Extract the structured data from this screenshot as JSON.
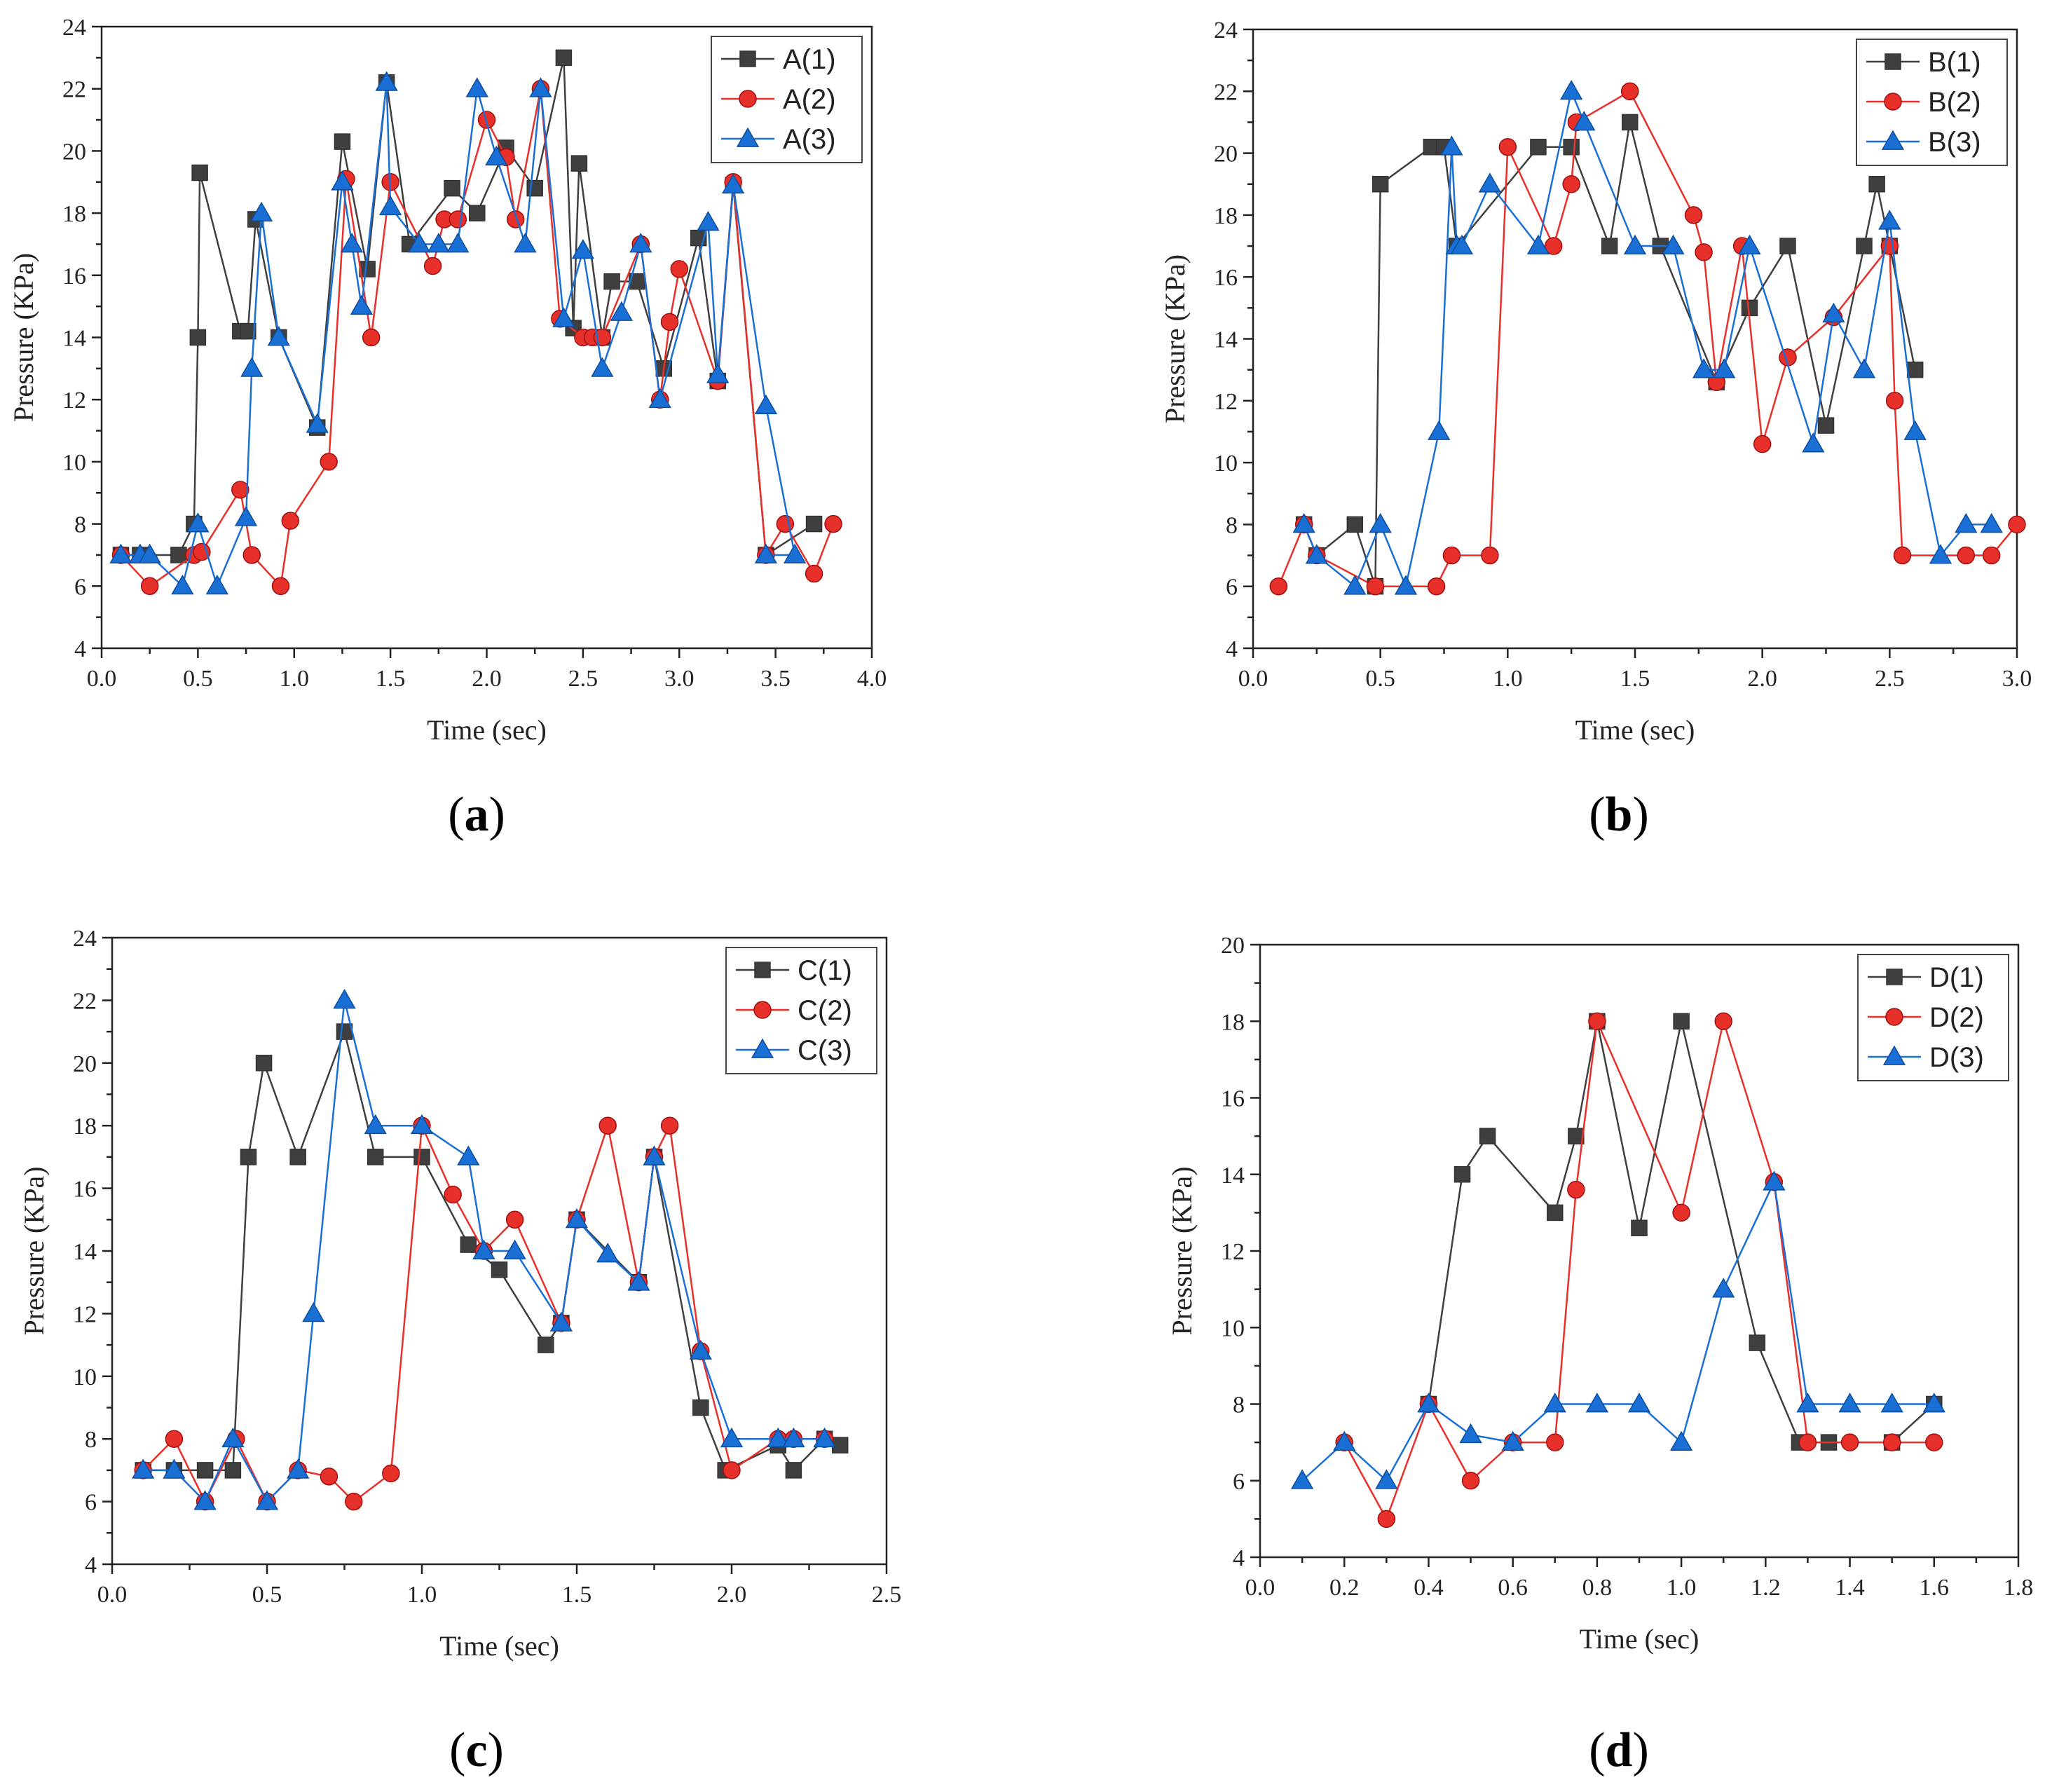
{
  "chart_data": [
    {
      "type": "line",
      "panel_label": "a",
      "xlabel": "Time (sec)",
      "ylabel": "Pressure (KPa)",
      "xlim": [
        0.0,
        4.0
      ],
      "ylim": [
        4,
        24
      ],
      "xticks": [
        "0.0",
        "0.5",
        "1.0",
        "1.5",
        "2.0",
        "2.5",
        "3.0",
        "3.5",
        "4.0"
      ],
      "yticks": [
        "4",
        "6",
        "8",
        "10",
        "12",
        "14",
        "16",
        "18",
        "20",
        "22",
        "24"
      ],
      "legend_position": "top-right",
      "series": [
        {
          "name": "A(1)",
          "color": "#3f3f3f",
          "marker": "square",
          "x": [
            0.1,
            0.2,
            0.4,
            0.48,
            0.5,
            0.51,
            0.72,
            0.76,
            0.8,
            0.92,
            1.12,
            1.25,
            1.38,
            1.48,
            1.6,
            1.82,
            1.95,
            2.1,
            2.25,
            2.4,
            2.45,
            2.48,
            2.6,
            2.65,
            2.78,
            2.92,
            3.1,
            3.2,
            3.28,
            3.45,
            3.7
          ],
          "y": [
            7,
            7,
            7,
            8,
            14,
            19.3,
            14.2,
            14.2,
            17.8,
            14,
            11.1,
            20.3,
            16.2,
            22.2,
            17,
            18.8,
            18,
            20.1,
            18.8,
            23,
            14.3,
            19.6,
            14,
            15.8,
            15.8,
            13,
            17.2,
            12.6,
            18.9,
            7,
            8
          ]
        },
        {
          "name": "A(2)",
          "color": "#e8302a",
          "marker": "circle",
          "x": [
            0.1,
            0.25,
            0.48,
            0.52,
            0.72,
            0.78,
            0.93,
            0.98,
            1.18,
            1.27,
            1.4,
            1.5,
            1.72,
            1.78,
            1.85,
            2.0,
            2.1,
            2.15,
            2.28,
            2.38,
            2.5,
            2.55,
            2.6,
            2.8,
            2.9,
            2.95,
            3.0,
            3.2,
            3.28,
            3.45,
            3.55,
            3.7,
            3.8
          ],
          "y": [
            7,
            6,
            7,
            7.1,
            9.1,
            7,
            6,
            8.1,
            10,
            19.1,
            14,
            19,
            16.3,
            17.8,
            17.8,
            21,
            19.8,
            17.8,
            22,
            14.6,
            14,
            14,
            14,
            17,
            12,
            14.5,
            16.2,
            12.6,
            19,
            7,
            8,
            6.4,
            8
          ]
        },
        {
          "name": "A(3)",
          "color": "#1a6fd4",
          "marker": "triangle",
          "x": [
            0.1,
            0.2,
            0.25,
            0.42,
            0.5,
            0.6,
            0.75,
            0.78,
            0.83,
            0.92,
            1.12,
            1.25,
            1.3,
            1.35,
            1.48,
            1.5,
            1.65,
            1.75,
            1.85,
            1.95,
            2.05,
            2.2,
            2.28,
            2.4,
            2.5,
            2.6,
            2.7,
            2.8,
            2.9,
            3.15,
            3.2,
            3.28,
            3.45,
            3.6,
            3.45
          ],
          "y": [
            7,
            7,
            7,
            6,
            8,
            6,
            8.2,
            13,
            18,
            14,
            11.2,
            19,
            17,
            15,
            22.2,
            18.2,
            17,
            17,
            17,
            22,
            19.8,
            17,
            22,
            14.6,
            16.8,
            13,
            14.8,
            17,
            12,
            17.7,
            12.8,
            18.9,
            11.8,
            7,
            7
          ]
        }
      ]
    },
    {
      "type": "line",
      "panel_label": "b",
      "xlabel": "Time (sec)",
      "ylabel": "Pressure (KPa)",
      "xlim": [
        0.0,
        3.0
      ],
      "ylim": [
        4,
        24
      ],
      "xticks": [
        "0.0",
        "0.5",
        "1.0",
        "1.5",
        "2.0",
        "2.5",
        "3.0"
      ],
      "yticks": [
        "4",
        "6",
        "8",
        "10",
        "12",
        "14",
        "16",
        "18",
        "20",
        "22",
        "24"
      ],
      "legend_position": "top-right",
      "series": [
        {
          "name": "B(1)",
          "color": "#3f3f3f",
          "marker": "square",
          "x": [
            0.2,
            0.25,
            0.4,
            0.48,
            0.5,
            0.7,
            0.75,
            0.8,
            1.12,
            1.25,
            1.4,
            1.48,
            1.6,
            1.82,
            1.95,
            2.1,
            2.25,
            2.4,
            2.45,
            2.5,
            2.6
          ],
          "y": [
            8,
            7,
            8,
            6,
            19,
            20.2,
            20.2,
            17,
            20.2,
            20.2,
            17,
            21,
            17,
            12.6,
            15,
            17,
            11.2,
            17,
            19,
            17,
            13
          ]
        },
        {
          "name": "B(2)",
          "color": "#e8302a",
          "marker": "circle",
          "x": [
            0.1,
            0.2,
            0.25,
            0.48,
            0.72,
            0.78,
            0.93,
            1.0,
            1.18,
            1.25,
            1.27,
            1.48,
            1.73,
            1.77,
            1.82,
            1.92,
            2.0,
            2.1,
            2.28,
            2.5,
            2.52,
            2.55,
            2.8,
            2.9,
            3.0
          ],
          "y": [
            6,
            8,
            7,
            6,
            6,
            7,
            7,
            20.2,
            17,
            19,
            21,
            22,
            18,
            16.8,
            12.6,
            17,
            10.6,
            13.4,
            14.7,
            17,
            12,
            7,
            7,
            7,
            8
          ]
        },
        {
          "name": "B(3)",
          "color": "#1a6fd4",
          "marker": "triangle",
          "x": [
            0.2,
            0.25,
            0.4,
            0.5,
            0.6,
            0.73,
            0.78,
            0.8,
            0.82,
            0.93,
            1.12,
            1.25,
            1.3,
            1.5,
            1.65,
            1.77,
            1.85,
            1.95,
            2.2,
            2.28,
            2.4,
            2.5,
            2.6,
            2.7,
            2.8,
            2.9
          ],
          "y": [
            8,
            7,
            6,
            8,
            6,
            11,
            20.2,
            17,
            17,
            19,
            17,
            22,
            21,
            17,
            17,
            13,
            13,
            17,
            10.6,
            14.8,
            13,
            17.8,
            11,
            7,
            8,
            8
          ]
        }
      ]
    },
    {
      "type": "line",
      "panel_label": "c",
      "xlabel": "Time (sec)",
      "ylabel": "Pressure (KPa)",
      "xlim": [
        0.0,
        2.5
      ],
      "ylim": [
        4,
        24
      ],
      "xticks": [
        "0.0",
        "0.5",
        "1.0",
        "1.5",
        "2.0",
        "2.5"
      ],
      "yticks": [
        "4",
        "6",
        "8",
        "10",
        "12",
        "14",
        "16",
        "18",
        "20",
        "22",
        "24"
      ],
      "legend_position": "top-right",
      "series": [
        {
          "name": "C(1)",
          "color": "#3f3f3f",
          "marker": "square",
          "x": [
            0.1,
            0.2,
            0.3,
            0.39,
            0.44,
            0.49,
            0.6,
            0.75,
            0.85,
            1.0,
            1.15,
            1.25,
            1.4,
            1.45,
            1.5,
            1.7,
            1.75,
            1.9,
            1.98,
            2.15,
            2.2,
            2.3,
            2.35
          ],
          "y": [
            7,
            7,
            7,
            7,
            17,
            20,
            17,
            21,
            17,
            17,
            14.2,
            13.4,
            11,
            11.7,
            15,
            13,
            17,
            9,
            7,
            7.8,
            7,
            8,
            7.8
          ]
        },
        {
          "name": "C(2)",
          "color": "#e8302a",
          "marker": "circle",
          "x": [
            0.1,
            0.2,
            0.3,
            0.4,
            0.5,
            0.6,
            0.7,
            0.78,
            0.9,
            1.0,
            1.1,
            1.2,
            1.3,
            1.45,
            1.5,
            1.6,
            1.7,
            1.75,
            1.8,
            1.9,
            2.0,
            2.15,
            2.2,
            2.3
          ],
          "y": [
            7,
            8,
            6,
            8,
            6,
            7,
            6.8,
            6,
            6.9,
            18,
            15.8,
            14,
            15,
            11.7,
            15,
            18,
            13,
            17,
            18,
            10.8,
            7,
            8,
            8,
            8
          ]
        },
        {
          "name": "C(3)",
          "color": "#1a6fd4",
          "marker": "triangle",
          "x": [
            0.1,
            0.2,
            0.3,
            0.39,
            0.5,
            0.6,
            0.65,
            0.75,
            0.85,
            1.0,
            1.15,
            1.2,
            1.3,
            1.45,
            1.5,
            1.6,
            1.7,
            1.75,
            1.9,
            2.0,
            2.15,
            2.2,
            2.3
          ],
          "y": [
            7,
            7,
            6,
            8,
            6,
            7,
            12,
            22,
            18,
            18,
            17,
            14,
            14,
            11.7,
            15,
            13.9,
            13,
            17,
            10.8,
            8,
            8,
            8,
            8
          ]
        }
      ]
    },
    {
      "type": "line",
      "panel_label": "d",
      "xlabel": "Time (sec)",
      "ylabel": "Pressure (KPa)",
      "xlim": [
        0.0,
        1.8
      ],
      "ylim": [
        4,
        20
      ],
      "xticks": [
        "0.0",
        "0.2",
        "0.4",
        "0.6",
        "0.8",
        "1.0",
        "1.2",
        "1.4",
        "1.6",
        "1.8"
      ],
      "yticks": [
        "4",
        "6",
        "8",
        "10",
        "12",
        "14",
        "16",
        "18",
        "20"
      ],
      "legend_position": "top-right",
      "series": [
        {
          "name": "D(1)",
          "color": "#3f3f3f",
          "marker": "square",
          "x": [
            0.4,
            0.48,
            0.54,
            0.7,
            0.75,
            0.8,
            0.9,
            1.0,
            1.18,
            1.28,
            1.35,
            1.5,
            1.6
          ],
          "y": [
            8,
            14,
            15,
            13,
            15,
            18,
            12.6,
            18,
            9.6,
            7,
            7,
            7,
            8
          ]
        },
        {
          "name": "D(2)",
          "color": "#e8302a",
          "marker": "circle",
          "x": [
            0.2,
            0.3,
            0.4,
            0.5,
            0.6,
            0.7,
            0.75,
            0.8,
            1.0,
            1.1,
            1.22,
            1.3,
            1.4,
            1.5,
            1.6
          ],
          "y": [
            7,
            5,
            8,
            6,
            7,
            7,
            13.6,
            18,
            13,
            18,
            13.8,
            7,
            7,
            7,
            7
          ]
        },
        {
          "name": "D(3)",
          "color": "#1a6fd4",
          "marker": "triangle",
          "x": [
            0.1,
            0.2,
            0.3,
            0.4,
            0.5,
            0.6,
            0.7,
            0.8,
            0.9,
            1.0,
            1.1,
            1.22,
            1.3,
            1.4,
            1.5,
            1.6
          ],
          "y": [
            6,
            7,
            6,
            8,
            7.2,
            7,
            8,
            8,
            8,
            7,
            11,
            13.8,
            8,
            8,
            8,
            8
          ]
        }
      ]
    }
  ]
}
